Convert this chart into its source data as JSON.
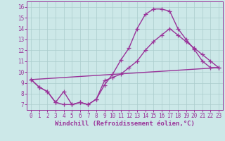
{
  "background_color": "#cce8e8",
  "grid_color": "#aacccc",
  "line_color": "#993399",
  "marker": "+",
  "markersize": 4,
  "linewidth": 1.0,
  "xlabel": "Windchill (Refroidissement éolien,°C)",
  "xlabel_fontsize": 6.5,
  "tick_fontsize": 5.5,
  "yticks": [
    7,
    8,
    9,
    10,
    11,
    12,
    13,
    14,
    15,
    16
  ],
  "xticks": [
    0,
    1,
    2,
    3,
    4,
    5,
    6,
    7,
    8,
    9,
    10,
    11,
    12,
    13,
    14,
    15,
    16,
    17,
    18,
    19,
    20,
    21,
    22,
    23
  ],
  "xlim": [
    -0.5,
    23.5
  ],
  "ylim": [
    6.5,
    16.5
  ],
  "line1_x": [
    0,
    1,
    2,
    3,
    4,
    5,
    6,
    7,
    8,
    9,
    10,
    11,
    12,
    13,
    14,
    15,
    16,
    17,
    18,
    19,
    20,
    21,
    22,
    23
  ],
  "line1_y": [
    9.3,
    8.6,
    8.2,
    7.2,
    7.0,
    7.0,
    7.2,
    7.0,
    7.5,
    8.8,
    9.8,
    11.1,
    12.2,
    14.0,
    15.3,
    15.8,
    15.8,
    15.6,
    14.0,
    13.0,
    12.1,
    11.0,
    10.4,
    10.4
  ],
  "line2_x": [
    0,
    1,
    2,
    3,
    4,
    5,
    6,
    7,
    8,
    9,
    10,
    11,
    12,
    13,
    14,
    15,
    16,
    17,
    18,
    19,
    20,
    21,
    22,
    23
  ],
  "line2_y": [
    9.3,
    8.6,
    8.2,
    7.2,
    8.2,
    7.0,
    7.2,
    7.0,
    7.5,
    9.2,
    9.5,
    9.8,
    10.4,
    11.0,
    12.0,
    12.8,
    13.4,
    14.0,
    13.4,
    12.8,
    12.2,
    11.6,
    11.0,
    10.4
  ],
  "line3_x": [
    0,
    23
  ],
  "line3_y": [
    9.3,
    10.4
  ]
}
